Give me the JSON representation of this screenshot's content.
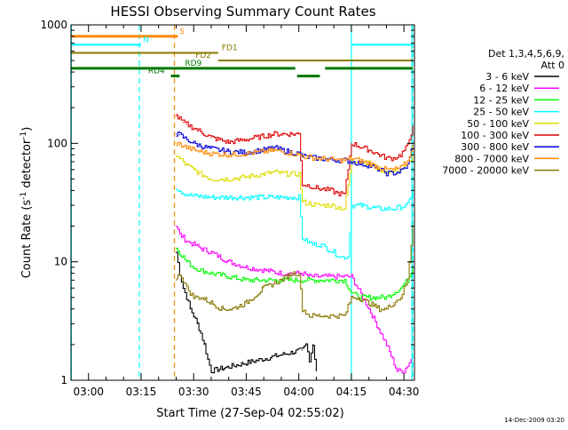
{
  "chart_data": {
    "type": "line",
    "title": "HESSI Observing Summary Count Rates",
    "xlabel": "Start Time (27-Sep-04 02:55:02)",
    "ylabel_main": "Count Rate (s",
    "ylabel_sup": "-1",
    "ylabel_tail": " detector",
    "ylabel_sup2": "-1",
    "ylabel_close": ")",
    "yscale": "log",
    "xlim_minutes": [
      0,
      98
    ],
    "ylim": [
      1,
      1000
    ],
    "x_ticks": [
      {
        "m": 5,
        "label": "03:00"
      },
      {
        "m": 20,
        "label": "03:15"
      },
      {
        "m": 35,
        "label": "03:30"
      },
      {
        "m": 50,
        "label": "03:45"
      },
      {
        "m": 65,
        "label": "04:00"
      },
      {
        "m": 80,
        "label": "04:15"
      },
      {
        "m": 95,
        "label": "04:30"
      }
    ],
    "y_ticks": [
      {
        "v": 1,
        "label": "1"
      },
      {
        "v": 10,
        "label": "10"
      },
      {
        "v": 100,
        "label": "100"
      },
      {
        "v": 1000,
        "label": "1000"
      }
    ],
    "legend_title": [
      "Det 1,3,4,5,6,9,",
      "Att 0"
    ],
    "legend_placement": "right",
    "series": [
      {
        "name": "3 - 6 keV",
        "color": "#000000",
        "x": [
          30,
          31,
          32,
          33,
          34,
          35,
          36,
          37,
          38,
          39,
          40,
          66,
          67,
          68,
          69,
          70
        ],
        "y": [
          12,
          8,
          6,
          5,
          4,
          3.5,
          3,
          2.5,
          2,
          1.5,
          1.2,
          1.8,
          2,
          1.5,
          2,
          1.2
        ]
      },
      {
        "name": "6 - 12 keV",
        "color": "#ff00ff",
        "x": [
          30,
          31,
          32,
          33,
          35,
          37,
          40,
          45,
          50,
          55,
          60,
          62,
          64,
          66,
          68,
          70,
          72,
          74,
          76,
          78,
          80,
          85,
          90,
          93,
          95,
          97
        ],
        "y": [
          20,
          17,
          16,
          15,
          14,
          13,
          12,
          10,
          9,
          8.5,
          8,
          8,
          8,
          8,
          7.5,
          7.5,
          7.5,
          7.5,
          7.5,
          7.5,
          7.5,
          4,
          2,
          1.2,
          1.2,
          1.5
        ]
      },
      {
        "name": "12 - 25 keV",
        "color": "#00ff00",
        "x": [
          30,
          31,
          33,
          35,
          37,
          40,
          45,
          50,
          55,
          60,
          62,
          64,
          66,
          68,
          70,
          72,
          74,
          76,
          78,
          80,
          82,
          85,
          88,
          90,
          92,
          94,
          96,
          97.5
        ],
        "y": [
          13,
          12,
          10,
          9,
          8.5,
          8,
          7.5,
          7,
          7,
          7,
          7,
          7,
          7,
          7,
          7,
          7,
          7,
          7,
          7,
          5.5,
          5,
          5,
          5,
          5,
          5.5,
          6,
          7,
          9
        ]
      },
      {
        "name": "25 - 50 keV",
        "color": "#00ffff",
        "x": [
          30,
          31,
          32,
          33,
          35,
          40,
          45,
          50,
          55,
          60,
          63,
          65,
          66,
          67,
          69,
          71,
          73,
          75,
          77,
          79,
          80,
          82,
          85,
          88,
          90,
          92,
          94,
          96,
          97.5
        ],
        "y": [
          42,
          40,
          38,
          37,
          36,
          35,
          35,
          35,
          35,
          35,
          35,
          35,
          16,
          15,
          14,
          14,
          13,
          12,
          11,
          11,
          30,
          30,
          29,
          28,
          28,
          28,
          29,
          30,
          40
        ]
      },
      {
        "name": "50 - 100 keV",
        "color": "#dddd00",
        "x": [
          30,
          31,
          32,
          33,
          35,
          37,
          40,
          45,
          50,
          55,
          58,
          60,
          63,
          65,
          66,
          68,
          70,
          72,
          74,
          76,
          78,
          80,
          82,
          85,
          88,
          90,
          92,
          94,
          96,
          97.5
        ],
        "y": [
          78,
          74,
          70,
          65,
          60,
          55,
          50,
          50,
          52,
          55,
          57,
          56,
          55,
          55,
          32,
          31,
          30,
          30,
          30,
          29,
          28,
          70,
          72,
          68,
          60,
          58,
          58,
          60,
          65,
          80
        ]
      },
      {
        "name": "100 - 300 keV",
        "color": "#dd0000",
        "x": [
          30,
          31,
          32,
          33,
          35,
          37,
          40,
          45,
          50,
          55,
          58,
          60,
          63,
          65,
          66,
          68,
          70,
          72,
          74,
          76,
          78,
          80,
          82,
          85,
          88,
          90,
          92,
          94,
          96,
          97.5
        ],
        "y": [
          170,
          160,
          150,
          145,
          135,
          125,
          112,
          102,
          108,
          115,
          120,
          120,
          120,
          120,
          45,
          44,
          42,
          41,
          40,
          38,
          37,
          100,
          95,
          88,
          80,
          75,
          75,
          80,
          95,
          140
        ]
      },
      {
        "name": "300 - 800 keV",
        "color": "#0000dd",
        "x": [
          30,
          31,
          32,
          33,
          35,
          37,
          40,
          45,
          50,
          55,
          58,
          60,
          63,
          65,
          66,
          68,
          70,
          72,
          74,
          76,
          78,
          80,
          82,
          85,
          88,
          90,
          92,
          94,
          96,
          97.5
        ],
        "y": [
          120,
          118,
          112,
          108,
          100,
          95,
          90,
          85,
          84,
          88,
          92,
          88,
          84,
          82,
          78,
          76,
          75,
          74,
          73,
          72,
          72,
          70,
          68,
          65,
          60,
          56,
          56,
          58,
          65,
          100
        ]
      },
      {
        "name": "800 - 7000 keV",
        "color": "#ff8800",
        "x": [
          30,
          31,
          32,
          33,
          35,
          37,
          40,
          45,
          50,
          55,
          58,
          60,
          63,
          65,
          66,
          68,
          70,
          72,
          74,
          76,
          78,
          80,
          82,
          85,
          88,
          90,
          92,
          94,
          96,
          97.5
        ],
        "y": [
          100,
          98,
          95,
          92,
          88,
          85,
          82,
          80,
          82,
          85,
          87,
          85,
          82,
          80,
          78,
          76,
          75,
          74,
          73,
          72,
          72,
          75,
          72,
          68,
          62,
          60,
          60,
          62,
          70,
          100
        ]
      },
      {
        "name": "7000 - 20000 keV",
        "color": "#887700",
        "x": [
          30,
          31,
          32,
          33,
          35,
          37,
          40,
          43,
          46,
          50,
          55,
          60,
          63,
          65,
          66,
          68,
          70,
          72,
          74,
          76,
          78,
          80,
          82,
          85,
          88,
          90,
          92,
          94,
          96,
          97.5
        ],
        "y": [
          7,
          8,
          7,
          6,
          5,
          5,
          4.5,
          4,
          4,
          4.5,
          6,
          7,
          8,
          8,
          4,
          3.5,
          3.5,
          3.5,
          3.5,
          3.5,
          3.5,
          5,
          5,
          4.5,
          4,
          4,
          4.5,
          5,
          7,
          20
        ]
      }
    ],
    "flag_bars": [
      {
        "label": "S",
        "color": "#ff8800",
        "width": 3,
        "y": 800,
        "segments": [
          [
            0,
            30.5
          ]
        ],
        "label_x": 31
      }
    ],
    "flag_bars_2": [
      {
        "label": "N",
        "color": "#00ffff",
        "width": 2,
        "y": 680,
        "segments": [
          [
            0,
            20
          ],
          [
            80,
            97.5
          ]
        ],
        "label_x": 20.5
      },
      {
        "label": "FD1",
        "color": "#887700",
        "width": 2,
        "y": 580,
        "segments": [
          [
            0,
            42
          ]
        ],
        "label_x": 43
      },
      {
        "label": "FD2",
        "color": "#887700",
        "width": 2,
        "y": 500,
        "segments": [
          [
            42,
            97.5
          ]
        ],
        "label_x": 35.5
      },
      {
        "label": "RD9",
        "color": "#007700",
        "width": 3,
        "y": 430,
        "segments": [
          [
            0,
            64
          ],
          [
            72.5,
            97.5
          ]
        ],
        "label_x": 32.5
      },
      {
        "label": "RD4",
        "color": "#007700",
        "width": 3,
        "y": 370,
        "segments": [
          [
            28.5,
            31
          ],
          [
            64.5,
            71
          ]
        ],
        "label_x": 22
      }
    ],
    "vlines": [
      {
        "x": 19.5,
        "color": "#00ffff",
        "dashed": true
      },
      {
        "x": 29.5,
        "color": "#ff8800",
        "dashed": true
      },
      {
        "x": 97.5,
        "color": "#00ffff",
        "dashed": true
      },
      {
        "x": 0.1,
        "color": "#00ffff",
        "dashed": false
      },
      {
        "x": 80,
        "color": "#00ffff",
        "dashed": false
      },
      {
        "x": 97.3,
        "color": "#00ffff",
        "dashed": false
      }
    ]
  },
  "footer": {
    "timestamp": "14-Dec-2009 03:20"
  }
}
